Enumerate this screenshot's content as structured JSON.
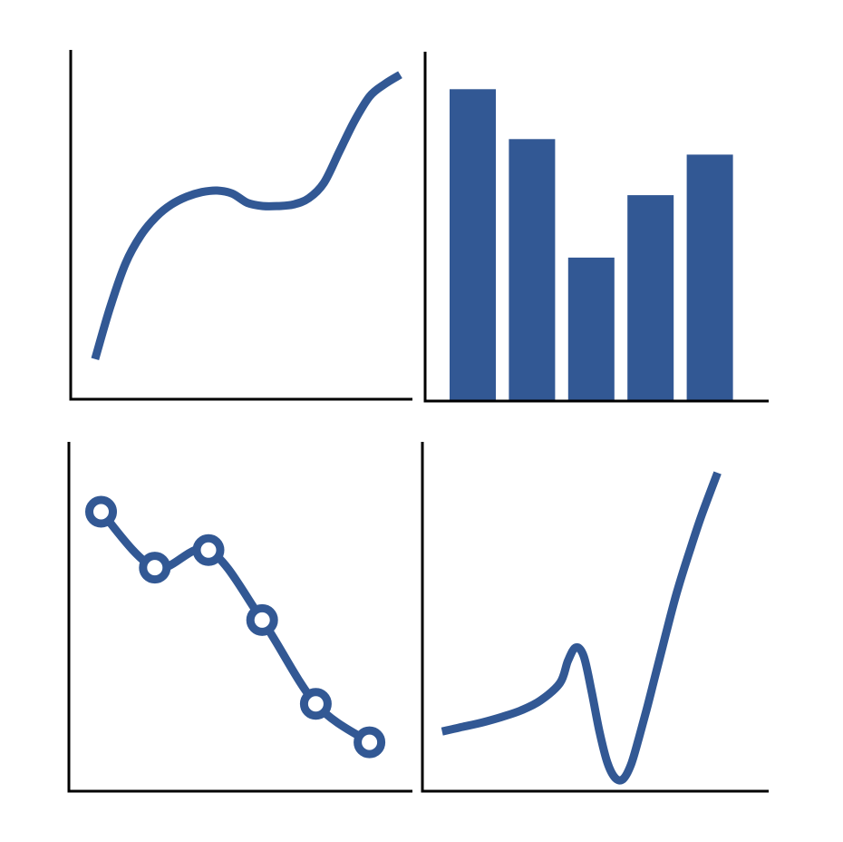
{
  "colors": {
    "series": "#325894",
    "axis": "#000000",
    "background": "#ffffff",
    "marker_fill": "#ffffff"
  },
  "chart_data": [
    {
      "type": "line",
      "title": "",
      "xlabel": "",
      "ylabel": "",
      "grid": false,
      "x": [
        0,
        0.5,
        1,
        1.5,
        2,
        2.5,
        3,
        3.5,
        4,
        4.5,
        5,
        5.5,
        6,
        6.5,
        7,
        7.5,
        8,
        8.5,
        9,
        9.5,
        10
      ],
      "series": [
        {
          "values": [
            0.5,
            2.2,
            3.6,
            4.5,
            5.1,
            5.5,
            5.75,
            5.9,
            5.95,
            5.85,
            5.55,
            5.45,
            5.45,
            5.5,
            5.7,
            6.2,
            7.2,
            8.2,
            9.0,
            9.4,
            9.7
          ]
        }
      ],
      "xlim": [
        -0.8,
        10.4
      ],
      "ylim": [
        -0.8,
        10.5
      ]
    },
    {
      "type": "bar",
      "title": "",
      "xlabel": "",
      "ylabel": "",
      "grid": false,
      "categories": [
        "",
        "",
        "",
        "",
        ""
      ],
      "values": [
        100,
        84,
        46,
        66,
        79
      ],
      "ylim": [
        0,
        112
      ]
    },
    {
      "type": "line",
      "title": "",
      "xlabel": "",
      "ylabel": "",
      "grid": false,
      "markers": "circle",
      "x": [
        1,
        2,
        3,
        4,
        5,
        6
      ],
      "series": [
        {
          "values": [
            8.0,
            6.4,
            6.9,
            4.9,
            2.5,
            1.4
          ]
        }
      ],
      "xlim": [
        0.4,
        6.8
      ],
      "ylim": [
        0,
        10
      ]
    },
    {
      "type": "line",
      "title": "",
      "xlabel": "",
      "ylabel": "",
      "grid": false,
      "x": [
        0,
        0.5,
        1,
        1.5,
        2,
        2.5,
        3,
        3.2,
        3.4,
        3.6,
        3.8,
        4.0,
        4.2,
        4.4,
        4.6,
        4.8,
        5.0,
        5.2,
        5.4,
        5.6,
        5.8,
        6.0,
        6.3,
        6.6,
        7.0
      ],
      "series": [
        {
          "values": [
            2.2,
            2.4,
            2.6,
            2.85,
            3.15,
            3.6,
            4.4,
            5.4,
            6.0,
            5.6,
            4.0,
            2.2,
            0.8,
            0.1,
            0.05,
            0.7,
            1.9,
            3.2,
            4.6,
            6.0,
            7.4,
            8.7,
            10.4,
            12.0,
            13.9
          ]
        }
      ],
      "xlim": [
        -0.5,
        8.3
      ],
      "ylim": [
        -0.5,
        15.3
      ]
    }
  ]
}
